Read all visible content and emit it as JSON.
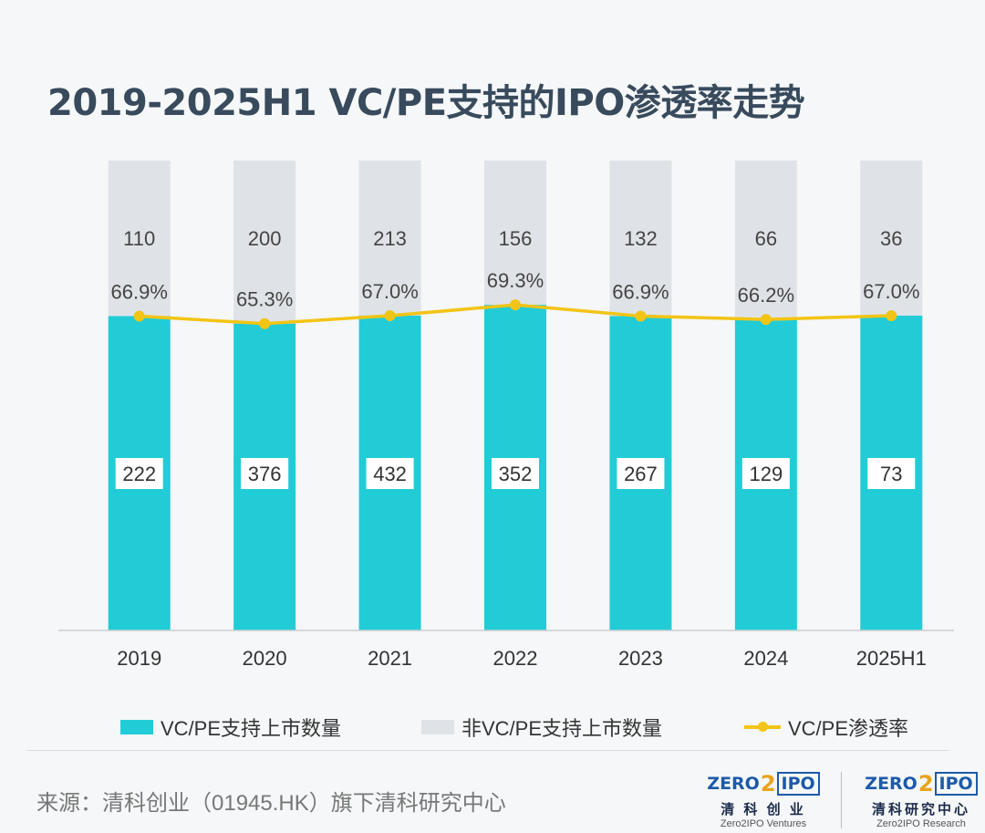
{
  "title": "2019-2025H1 VC/PE支持的IPO渗透率走势",
  "colors": {
    "vcpe": "#22ccd6",
    "non_vcpe": "#dfe3e7",
    "rate": "#f2c415"
  },
  "chart_data": {
    "type": "bar",
    "stacked": true,
    "categories": [
      "2019",
      "2020",
      "2021",
      "2022",
      "2023",
      "2024",
      "2025H1"
    ],
    "series": [
      {
        "name": "VC/PE支持上市数量",
        "values": [
          222,
          376,
          432,
          352,
          267,
          129,
          73
        ]
      },
      {
        "name": "非VC/PE支持上市数量",
        "values": [
          110,
          200,
          213,
          156,
          132,
          66,
          36
        ]
      }
    ],
    "line_series": {
      "name": "VC/PE渗透率",
      "values": [
        66.9,
        65.3,
        67.0,
        69.3,
        66.9,
        66.2,
        67.0
      ],
      "labels": [
        "66.9%",
        "65.3%",
        "67.0%",
        "69.3%",
        "66.9%",
        "66.2%",
        "67.0%"
      ]
    },
    "normalized": true,
    "ylim": [
      0,
      100
    ],
    "grid": false,
    "legend_position": "bottom"
  },
  "legend": {
    "vcpe": "VC/PE支持上市数量",
    "non_vcpe": "非VC/PE支持上市数量",
    "rate": "VC/PE渗透率"
  },
  "source": "来源：清科创业（01945.HK）旗下清科研究中心",
  "logos": [
    {
      "mark_left": "ZERO",
      "mark_two": "2",
      "mark_right": "IPO",
      "cn": "清 科 创 业",
      "en": "Zero2IPO Ventures"
    },
    {
      "mark_left": "ZERO",
      "mark_two": "2",
      "mark_right": "IPO",
      "cn": "清科研究中心",
      "en": "Zero2IPO Research"
    }
  ]
}
